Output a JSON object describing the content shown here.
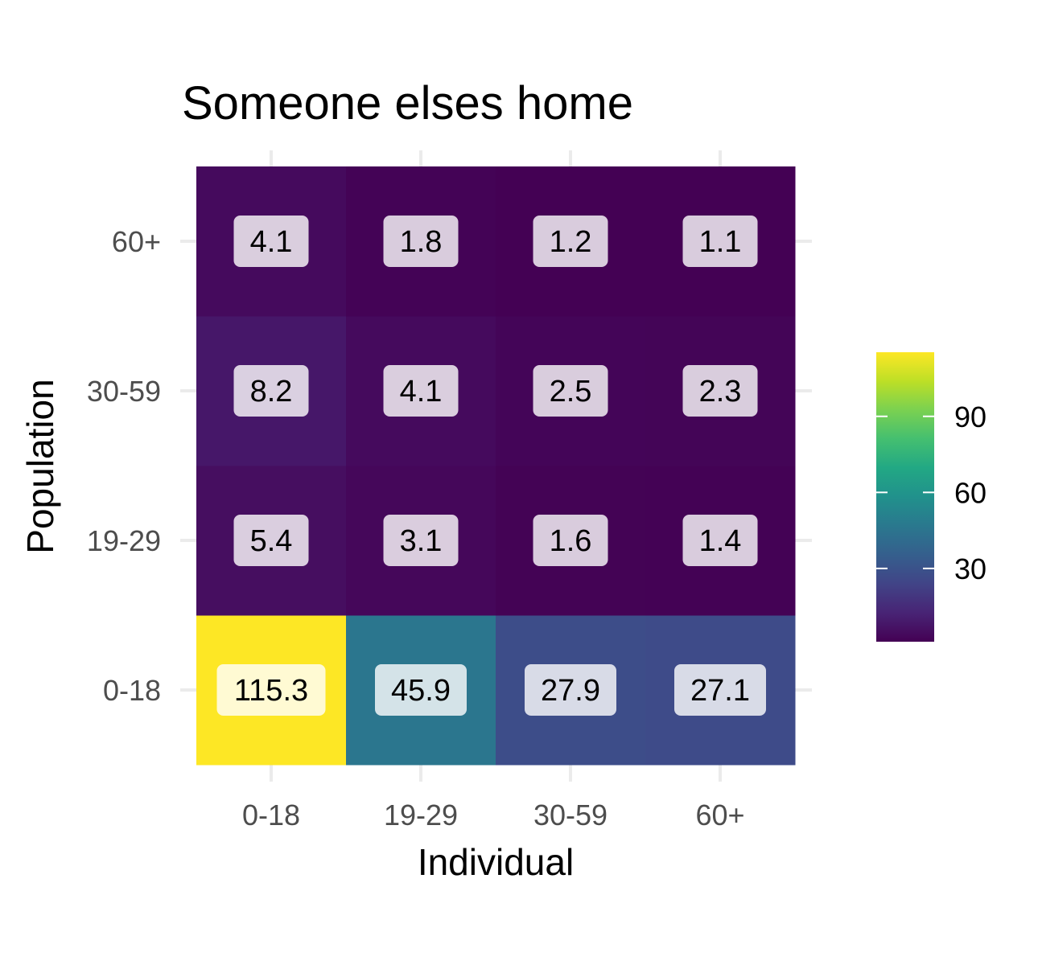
{
  "chart_data": {
    "type": "heatmap",
    "title": "Someone elses home",
    "xlabel": "Individual",
    "ylabel": "Population",
    "x_categories": [
      "0-18",
      "19-29",
      "30-59",
      "60+"
    ],
    "y_categories": [
      "0-18",
      "19-29",
      "30-59",
      "60+"
    ],
    "values": [
      [
        115.3,
        45.9,
        27.9,
        27.1
      ],
      [
        5.4,
        3.1,
        1.6,
        1.4
      ],
      [
        8.2,
        4.1,
        2.5,
        2.3
      ],
      [
        4.1,
        1.8,
        1.2,
        1.1
      ]
    ],
    "value_labels": [
      [
        "115.3",
        "45.9",
        "27.9",
        "27.1"
      ],
      [
        "5.4",
        "3.1",
        "1.6",
        "1.4"
      ],
      [
        "8.2",
        "4.1",
        "2.5",
        "2.3"
      ],
      [
        "4.1",
        "1.8",
        "1.2",
        "1.1"
      ]
    ],
    "colorscale": "viridis",
    "color_range": [
      1.1,
      115.3
    ],
    "legend": {
      "position": "right",
      "ticks": [
        30,
        60,
        90
      ],
      "tick_labels": [
        "30",
        "60",
        "90"
      ]
    },
    "grid": true
  }
}
